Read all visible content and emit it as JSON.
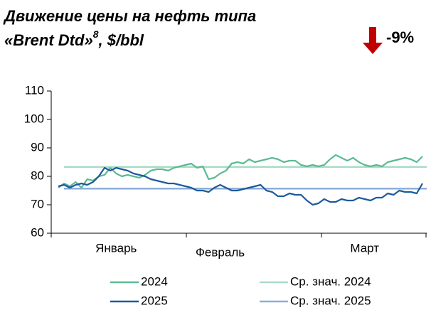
{
  "chart_data": {
    "type": "line",
    "title": "Движение цены на нефть типа",
    "title_line2": "«Brent Dtd»",
    "title_footnote": "8",
    "title_unit": ", $/bbl",
    "change_annotation": "-9%",
    "categories": [
      null,
      null,
      null,
      null,
      null,
      null,
      null,
      null,
      null,
      null,
      "Январь",
      null,
      null,
      null,
      null,
      null,
      null,
      null,
      null,
      null,
      null,
      null,
      null,
      null,
      null,
      null,
      null,
      null,
      "Февраль",
      null,
      null,
      null,
      null,
      null,
      null,
      null,
      null,
      null,
      null,
      null,
      null,
      null,
      null,
      null,
      null,
      null,
      null,
      null,
      null,
      null,
      null,
      null,
      null,
      "Март",
      null,
      null,
      null,
      null,
      null,
      null,
      null,
      null,
      null,
      null
    ],
    "series": [
      {
        "name": "2024",
        "color": "#5cba93",
        "values": [
          76,
          77.5,
          76.5,
          78,
          76,
          79,
          78.5,
          80,
          80.5,
          83,
          81,
          80,
          80.5,
          80,
          79.5,
          80.5,
          82,
          82.5,
          82.5,
          82,
          83,
          83.5,
          84,
          84.5,
          83,
          83.5,
          79,
          79.5,
          81,
          82,
          84.5,
          85,
          84.5,
          86,
          85,
          85.5,
          86,
          86.5,
          86,
          85,
          85.5,
          85.5,
          84,
          83.5,
          84,
          83.5,
          84,
          86,
          87.5,
          86.5,
          85.5,
          86.5,
          85,
          84,
          83.5,
          84,
          83.5,
          85,
          85.5,
          86,
          86.5,
          86,
          85,
          87
        ]
      },
      {
        "name": "2025",
        "color": "#1c5a9c",
        "values": [
          76.5,
          77,
          76,
          77,
          77.5,
          77,
          78,
          80,
          83,
          82,
          83,
          82.5,
          82,
          81,
          80.5,
          80,
          79,
          78.5,
          78,
          77.5,
          77.5,
          77,
          76.5,
          76,
          75,
          75,
          74.5,
          76,
          77,
          76,
          75,
          75,
          75.5,
          76,
          76.5,
          77,
          75,
          74.5,
          73,
          73,
          74,
          73.5,
          73.5,
          71.5,
          70,
          70.5,
          72,
          71,
          71,
          72,
          71.5,
          71.5,
          72.5,
          72,
          71.5,
          72.5,
          72.5,
          74,
          73.5,
          75,
          74.5,
          74.5,
          74,
          77.5
        ]
      }
    ],
    "reference_lines": [
      {
        "name": "Ср. знач. 2024",
        "value": 83.3,
        "color": "#a9dcc6"
      },
      {
        "name": "Ср. знач. 2025",
        "value": 75.7,
        "color": "#8eaed6"
      }
    ],
    "ylim": [
      60,
      110
    ],
    "yticks": [
      60,
      70,
      80,
      90,
      100,
      110
    ],
    "grid": false
  }
}
